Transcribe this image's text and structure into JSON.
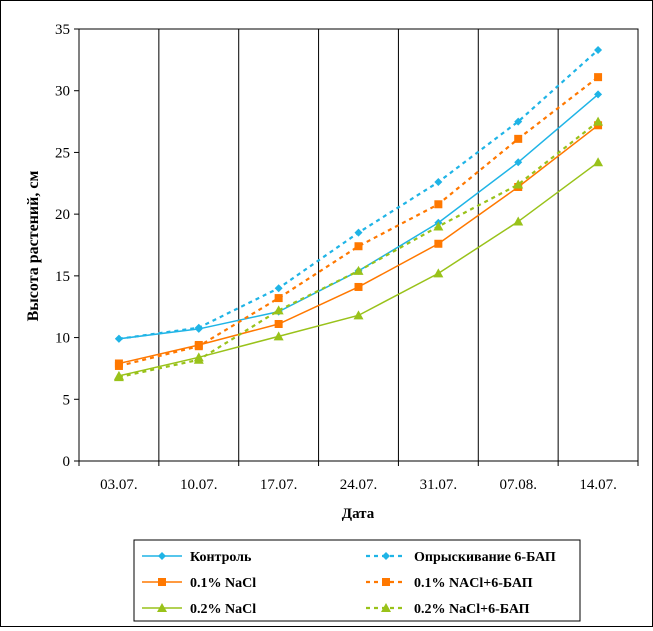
{
  "chart_data": {
    "type": "line",
    "xlabel": "Дата",
    "ylabel": "Высота растений, см",
    "categories": [
      "03.07.",
      "10.07.",
      "17.07.",
      "24.07.",
      "31.07.",
      "07.08.",
      "14.07."
    ],
    "ylim": [
      0,
      35
    ],
    "yticks": [
      0,
      5,
      10,
      15,
      20,
      25,
      30,
      35
    ],
    "grid": "vertical",
    "legend_position": "bottom",
    "series": [
      {
        "name": "Контроль",
        "color": "#1fb4e6",
        "marker": "diamond",
        "dashed": false,
        "values": [
          9.9,
          10.7,
          12.1,
          15.4,
          19.3,
          24.2,
          29.7
        ]
      },
      {
        "name": "Опрыскивание 6-БАП",
        "color": "#1fb4e6",
        "marker": "diamond",
        "dashed": true,
        "values": [
          9.9,
          10.8,
          14.0,
          18.5,
          22.6,
          27.5,
          33.3
        ]
      },
      {
        "name": "0.1% NaCl",
        "color": "#ff7800",
        "marker": "square",
        "dashed": false,
        "values": [
          7.9,
          9.4,
          11.1,
          14.1,
          17.6,
          22.2,
          27.2
        ]
      },
      {
        "name": "0.1% NACl+6-БАП",
        "color": "#ff7800",
        "marker": "square",
        "dashed": true,
        "values": [
          7.7,
          9.3,
          13.2,
          17.4,
          20.8,
          26.1,
          31.1
        ]
      },
      {
        "name": "0.2% NaCl",
        "color": "#99c21a",
        "marker": "triangle",
        "dashed": false,
        "values": [
          6.9,
          8.4,
          10.1,
          11.8,
          15.2,
          19.4,
          24.2
        ]
      },
      {
        "name": "0.2% NaCl+6-БАП",
        "color": "#99c21a",
        "marker": "triangle",
        "dashed": true,
        "values": [
          6.8,
          8.2,
          12.2,
          15.4,
          19.0,
          22.4,
          27.5
        ]
      }
    ]
  }
}
